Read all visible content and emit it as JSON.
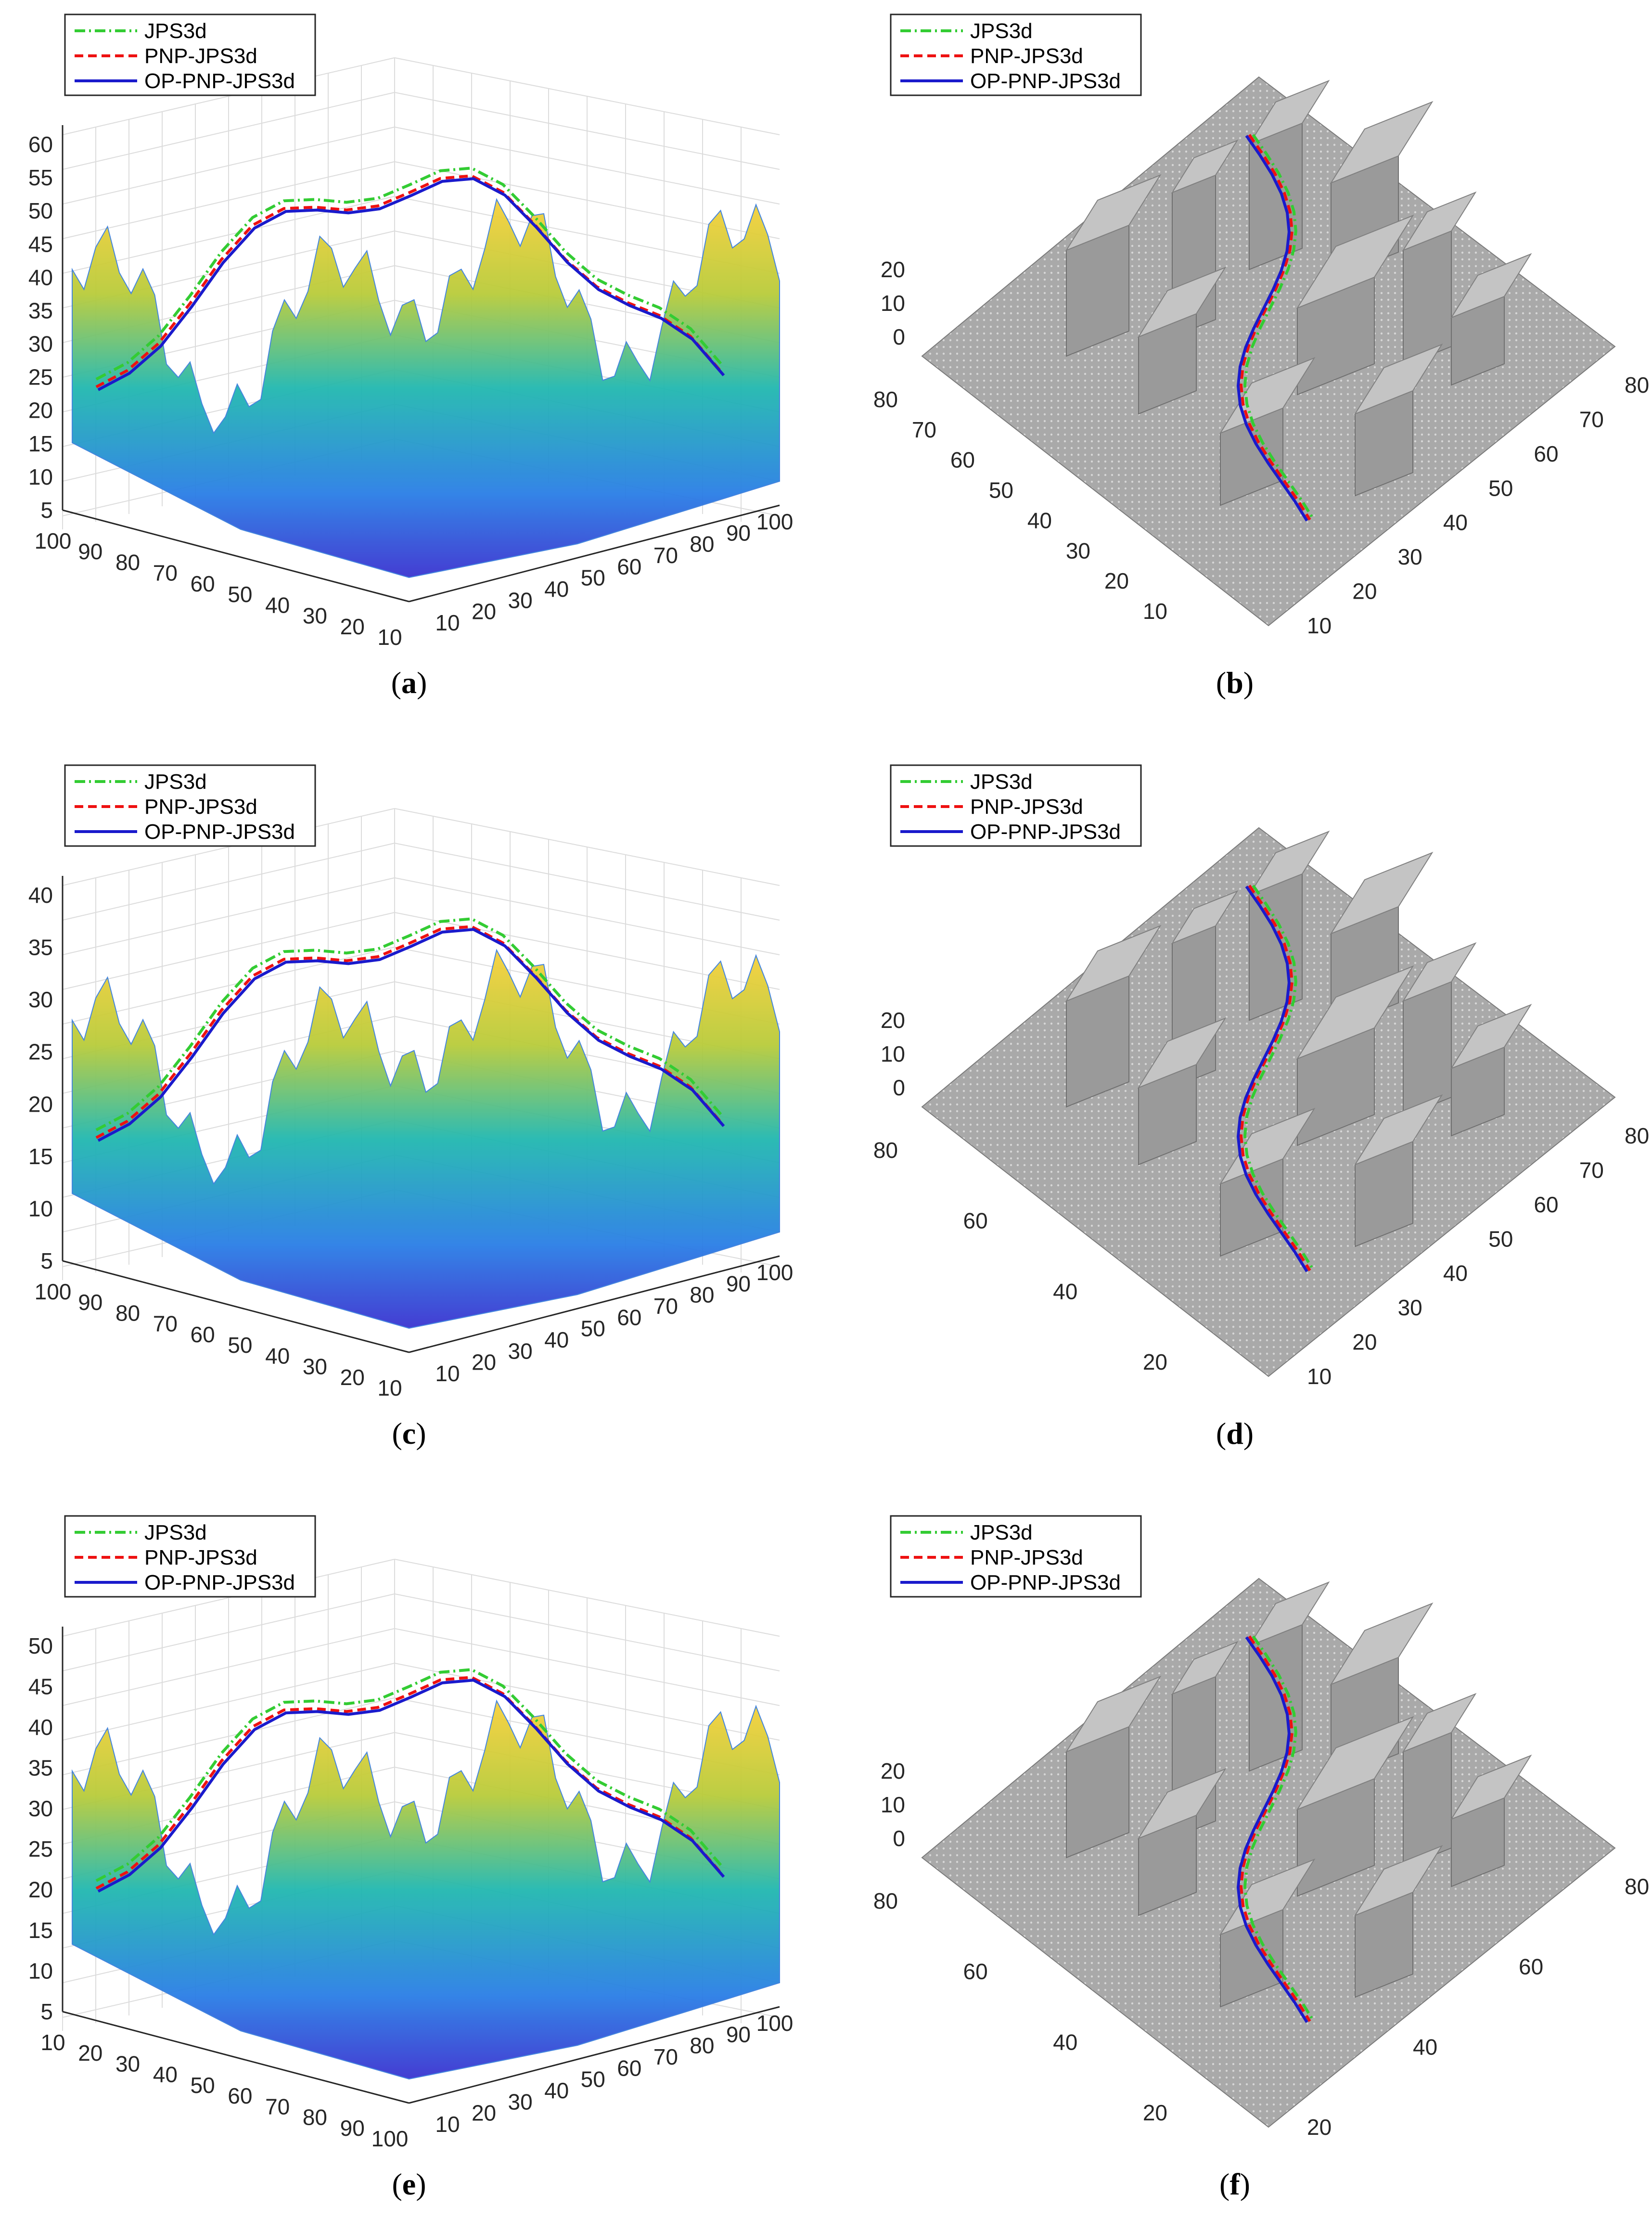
{
  "legend": [
    "JPS3d",
    "PNP-JPS3d",
    "OP-PNP-JPS3d"
  ],
  "colors": {
    "jps3d": "#33cc33",
    "pnp_jps3d": "#ee1111",
    "op_pnp_jps3d": "#1a1acc",
    "terrain_low": "#3a33d0",
    "terrain_mid": "#21b8b0",
    "terrain_high": "#f8d03a",
    "obstacle_gray": "#a8a8a8"
  },
  "chart_data": [
    {
      "panel": "a",
      "type": "surface",
      "caption": {
        "open": "(",
        "letter": "a",
        "close": ")"
      },
      "zticks": [
        "60",
        "55",
        "50",
        "45",
        "40",
        "35",
        "30",
        "25",
        "20",
        "15",
        "10",
        "5"
      ],
      "left_ticks": [
        "100",
        "90",
        "80",
        "70",
        "60",
        "50",
        "40",
        "30",
        "20",
        "10"
      ],
      "right_ticks": [
        "10",
        "20",
        "30",
        "40",
        "50",
        "60",
        "70",
        "80",
        "90",
        "100"
      ],
      "legend": [
        "JPS3d",
        "PNP-JPS3d",
        "OP-PNP-JPS3d"
      ]
    },
    {
      "panel": "b",
      "type": "surface",
      "caption": {
        "open": "(",
        "letter": "b",
        "close": ")"
      },
      "zticks": [
        "20",
        "10",
        "0"
      ],
      "left_ticks": [
        "80",
        "70",
        "60",
        "50",
        "40",
        "30",
        "20",
        "10"
      ],
      "right_ticks": [
        "10",
        "20",
        "30",
        "40",
        "50",
        "60",
        "70",
        "80"
      ],
      "legend": [
        "JPS3d",
        "PNP-JPS3d",
        "OP-PNP-JPS3d"
      ]
    },
    {
      "panel": "c",
      "type": "surface",
      "caption": {
        "open": "(",
        "letter": "c",
        "close": ")"
      },
      "zticks": [
        "40",
        "35",
        "30",
        "25",
        "20",
        "15",
        "10",
        "5"
      ],
      "left_ticks": [
        "100",
        "90",
        "80",
        "70",
        "60",
        "50",
        "40",
        "30",
        "20",
        "10"
      ],
      "right_ticks": [
        "10",
        "20",
        "30",
        "40",
        "50",
        "60",
        "70",
        "80",
        "90",
        "100"
      ],
      "legend": [
        "JPS3d",
        "PNP-JPS3d",
        "OP-PNP-JPS3d"
      ]
    },
    {
      "panel": "d",
      "type": "surface",
      "caption": {
        "open": "(",
        "letter": "d",
        "close": ")"
      },
      "zticks": [
        "20",
        "10",
        "0"
      ],
      "left_ticks": [
        "80",
        "60",
        "40",
        "20"
      ],
      "right_ticks": [
        "10",
        "20",
        "30",
        "40",
        "50",
        "60",
        "70",
        "80"
      ],
      "legend": [
        "JPS3d",
        "PNP-JPS3d",
        "OP-PNP-JPS3d"
      ]
    },
    {
      "panel": "e",
      "type": "surface",
      "caption": {
        "open": "(",
        "letter": "e",
        "close": ")"
      },
      "zticks": [
        "50",
        "45",
        "40",
        "35",
        "30",
        "25",
        "20",
        "15",
        "10",
        "5"
      ],
      "left_ticks": [
        "10",
        "20",
        "30",
        "40",
        "50",
        "60",
        "70",
        "80",
        "90",
        "100"
      ],
      "right_ticks": [
        "10",
        "20",
        "30",
        "40",
        "50",
        "60",
        "70",
        "80",
        "90",
        "100"
      ],
      "legend": [
        "JPS3d",
        "PNP-JPS3d",
        "OP-PNP-JPS3d"
      ]
    },
    {
      "panel": "f",
      "type": "surface",
      "caption": {
        "open": "(",
        "letter": "f",
        "close": ")"
      },
      "zticks": [
        "20",
        "10",
        "0"
      ],
      "left_ticks": [
        "80",
        "60",
        "40",
        "20"
      ],
      "right_ticks": [
        "20",
        "40",
        "60",
        "80"
      ],
      "legend": [
        "JPS3d",
        "PNP-JPS3d",
        "OP-PNP-JPS3d"
      ]
    }
  ]
}
